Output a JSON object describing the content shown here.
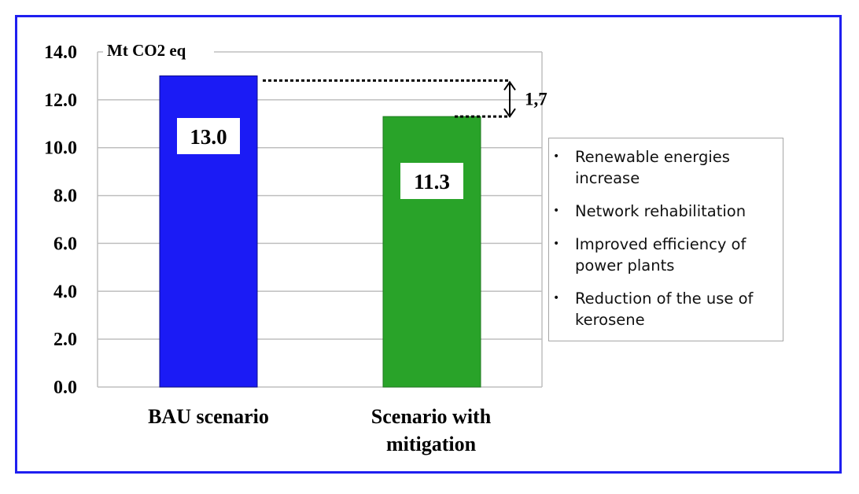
{
  "chart_data": {
    "type": "bar",
    "unit_label": "Mt CO2 eq",
    "categories": [
      "BAU scenario",
      "Scenario with mitigation"
    ],
    "category_lines": [
      [
        "BAU scenario"
      ],
      [
        "Scenario with",
        "mitigation"
      ]
    ],
    "values": [
      13.0,
      11.3
    ],
    "value_labels": [
      "13.0",
      "11.3"
    ],
    "colors": [
      "#1b1bf5",
      "#29a329"
    ],
    "ylim": [
      0,
      14
    ],
    "yticks": [
      "0.0",
      "2.0",
      "4.0",
      "6.0",
      "8.0",
      "10.0",
      "12.0",
      "14.0"
    ],
    "grid": true,
    "difference_label": "1,7"
  },
  "notes": {
    "items": [
      "Renewable energies increase",
      "Network rehabilitation",
      "Improved efficiency of power plants",
      "Reduction of the use of kerosene"
    ]
  },
  "colors": {
    "frame_border": "#1f1ff0",
    "grid": "#bfbfbf"
  }
}
